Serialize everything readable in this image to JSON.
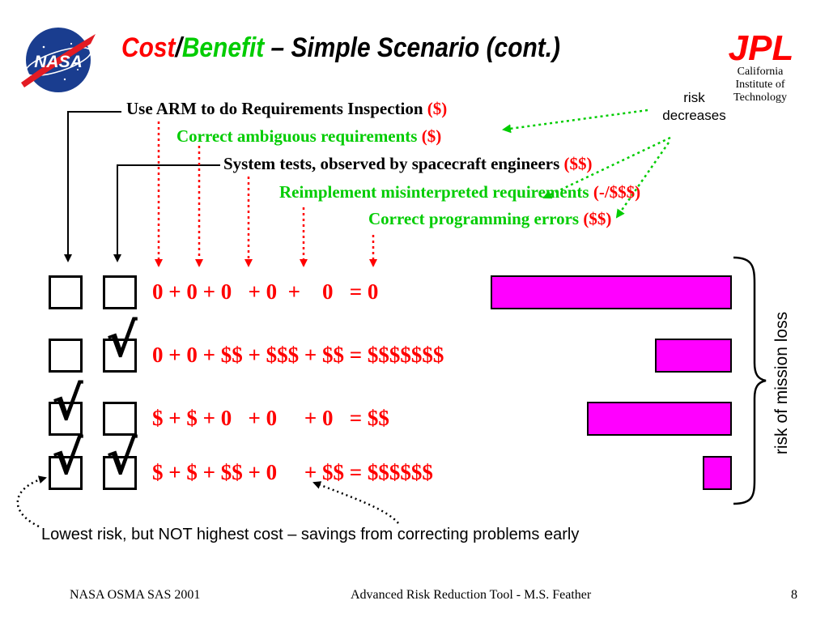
{
  "title": {
    "cost": "Cost",
    "slash": "/",
    "benefit": "Benefit",
    "rest": " – Simple Scenario (cont.)"
  },
  "logos": {
    "nasa": "NASA",
    "jpl": "JPL",
    "jpl_caption": [
      "California",
      "Institute of",
      "Technology"
    ]
  },
  "colors": {
    "red": "#ff0000",
    "green": "#00cc00",
    "magenta": "#ff00ff",
    "nasa_blue": "#1a3d8f"
  },
  "steps": [
    {
      "text": "Use ARM to do Requirements Inspection ",
      "cost": "($)",
      "color": "black"
    },
    {
      "text": "Correct ambiguous requirements ",
      "cost": "($)",
      "color": "green"
    },
    {
      "text": "System tests, observed by spacecraft engineers ",
      "cost": "($$)",
      "color": "black"
    },
    {
      "text": "Reimplement misinterpreted requirements ",
      "cost": "(-/$$$)",
      "color": "green"
    },
    {
      "text": "Correct programming errors ",
      "cost": "($$)",
      "color": "green"
    }
  ],
  "risk_note": [
    "risk",
    "decreases"
  ],
  "scenarios": [
    {
      "inspection_checked": false,
      "tests_checked": false,
      "equation": "0 + 0 + 0   + 0  +    0   = 0",
      "risk_level": 1.0
    },
    {
      "inspection_checked": false,
      "tests_checked": true,
      "equation": "0 + 0 + $$ + $$$ + $$ = $$$$$$$",
      "risk_level": 0.32
    },
    {
      "inspection_checked": true,
      "tests_checked": false,
      "equation": "$ + $ + 0   + 0     + 0   = $$",
      "risk_level": 0.6
    },
    {
      "inspection_checked": true,
      "tests_checked": true,
      "equation": "$ + $ + $$ + 0     + $$ = $$$$$$",
      "risk_level": 0.12
    }
  ],
  "check_mark": "√",
  "axis_label": "risk of mission loss",
  "bottom_note": "Lowest risk, but NOT highest cost – savings from correcting problems early",
  "footer": {
    "left": "NASA OSMA SAS 2001",
    "center": "Advanced Risk Reduction Tool - M.S. Feather",
    "page": "8"
  }
}
